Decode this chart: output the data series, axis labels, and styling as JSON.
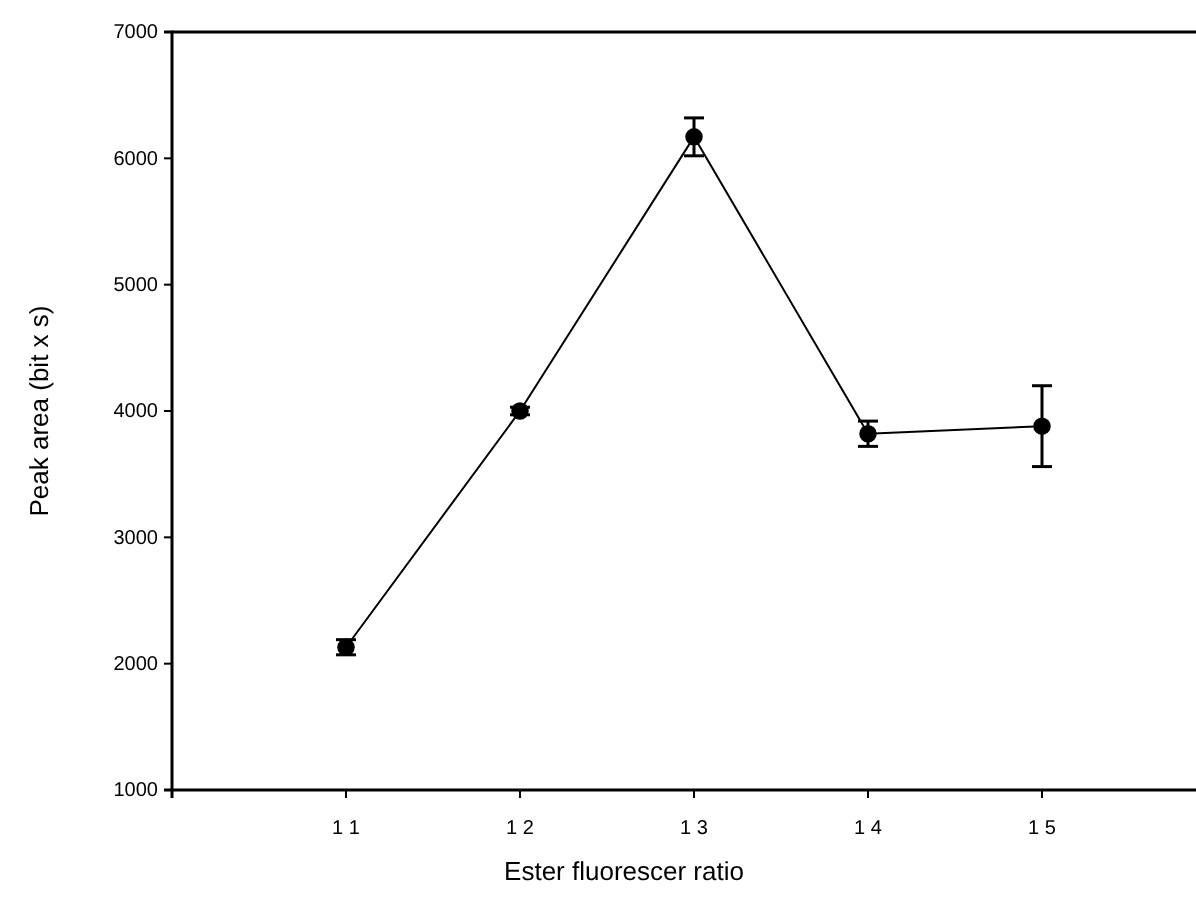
{
  "chart_data": {
    "type": "line",
    "xlabel": "Ester fluorescer ratio",
    "ylabel": "Peak area (bit x s)",
    "categories": [
      "1 1",
      "1 2",
      "1 3",
      "1 4",
      "1 5"
    ],
    "series": [
      {
        "color": "#000000",
        "values": [
          2130,
          4000,
          6170,
          3820,
          3880
        ],
        "errors": [
          60,
          30,
          150,
          100,
          320
        ]
      }
    ],
    "ylim": [
      1000,
      7000
    ],
    "yticks": [
      1000,
      2000,
      3000,
      4000,
      5000,
      6000,
      7000
    ],
    "marker": "circle",
    "line_style": "solid"
  }
}
